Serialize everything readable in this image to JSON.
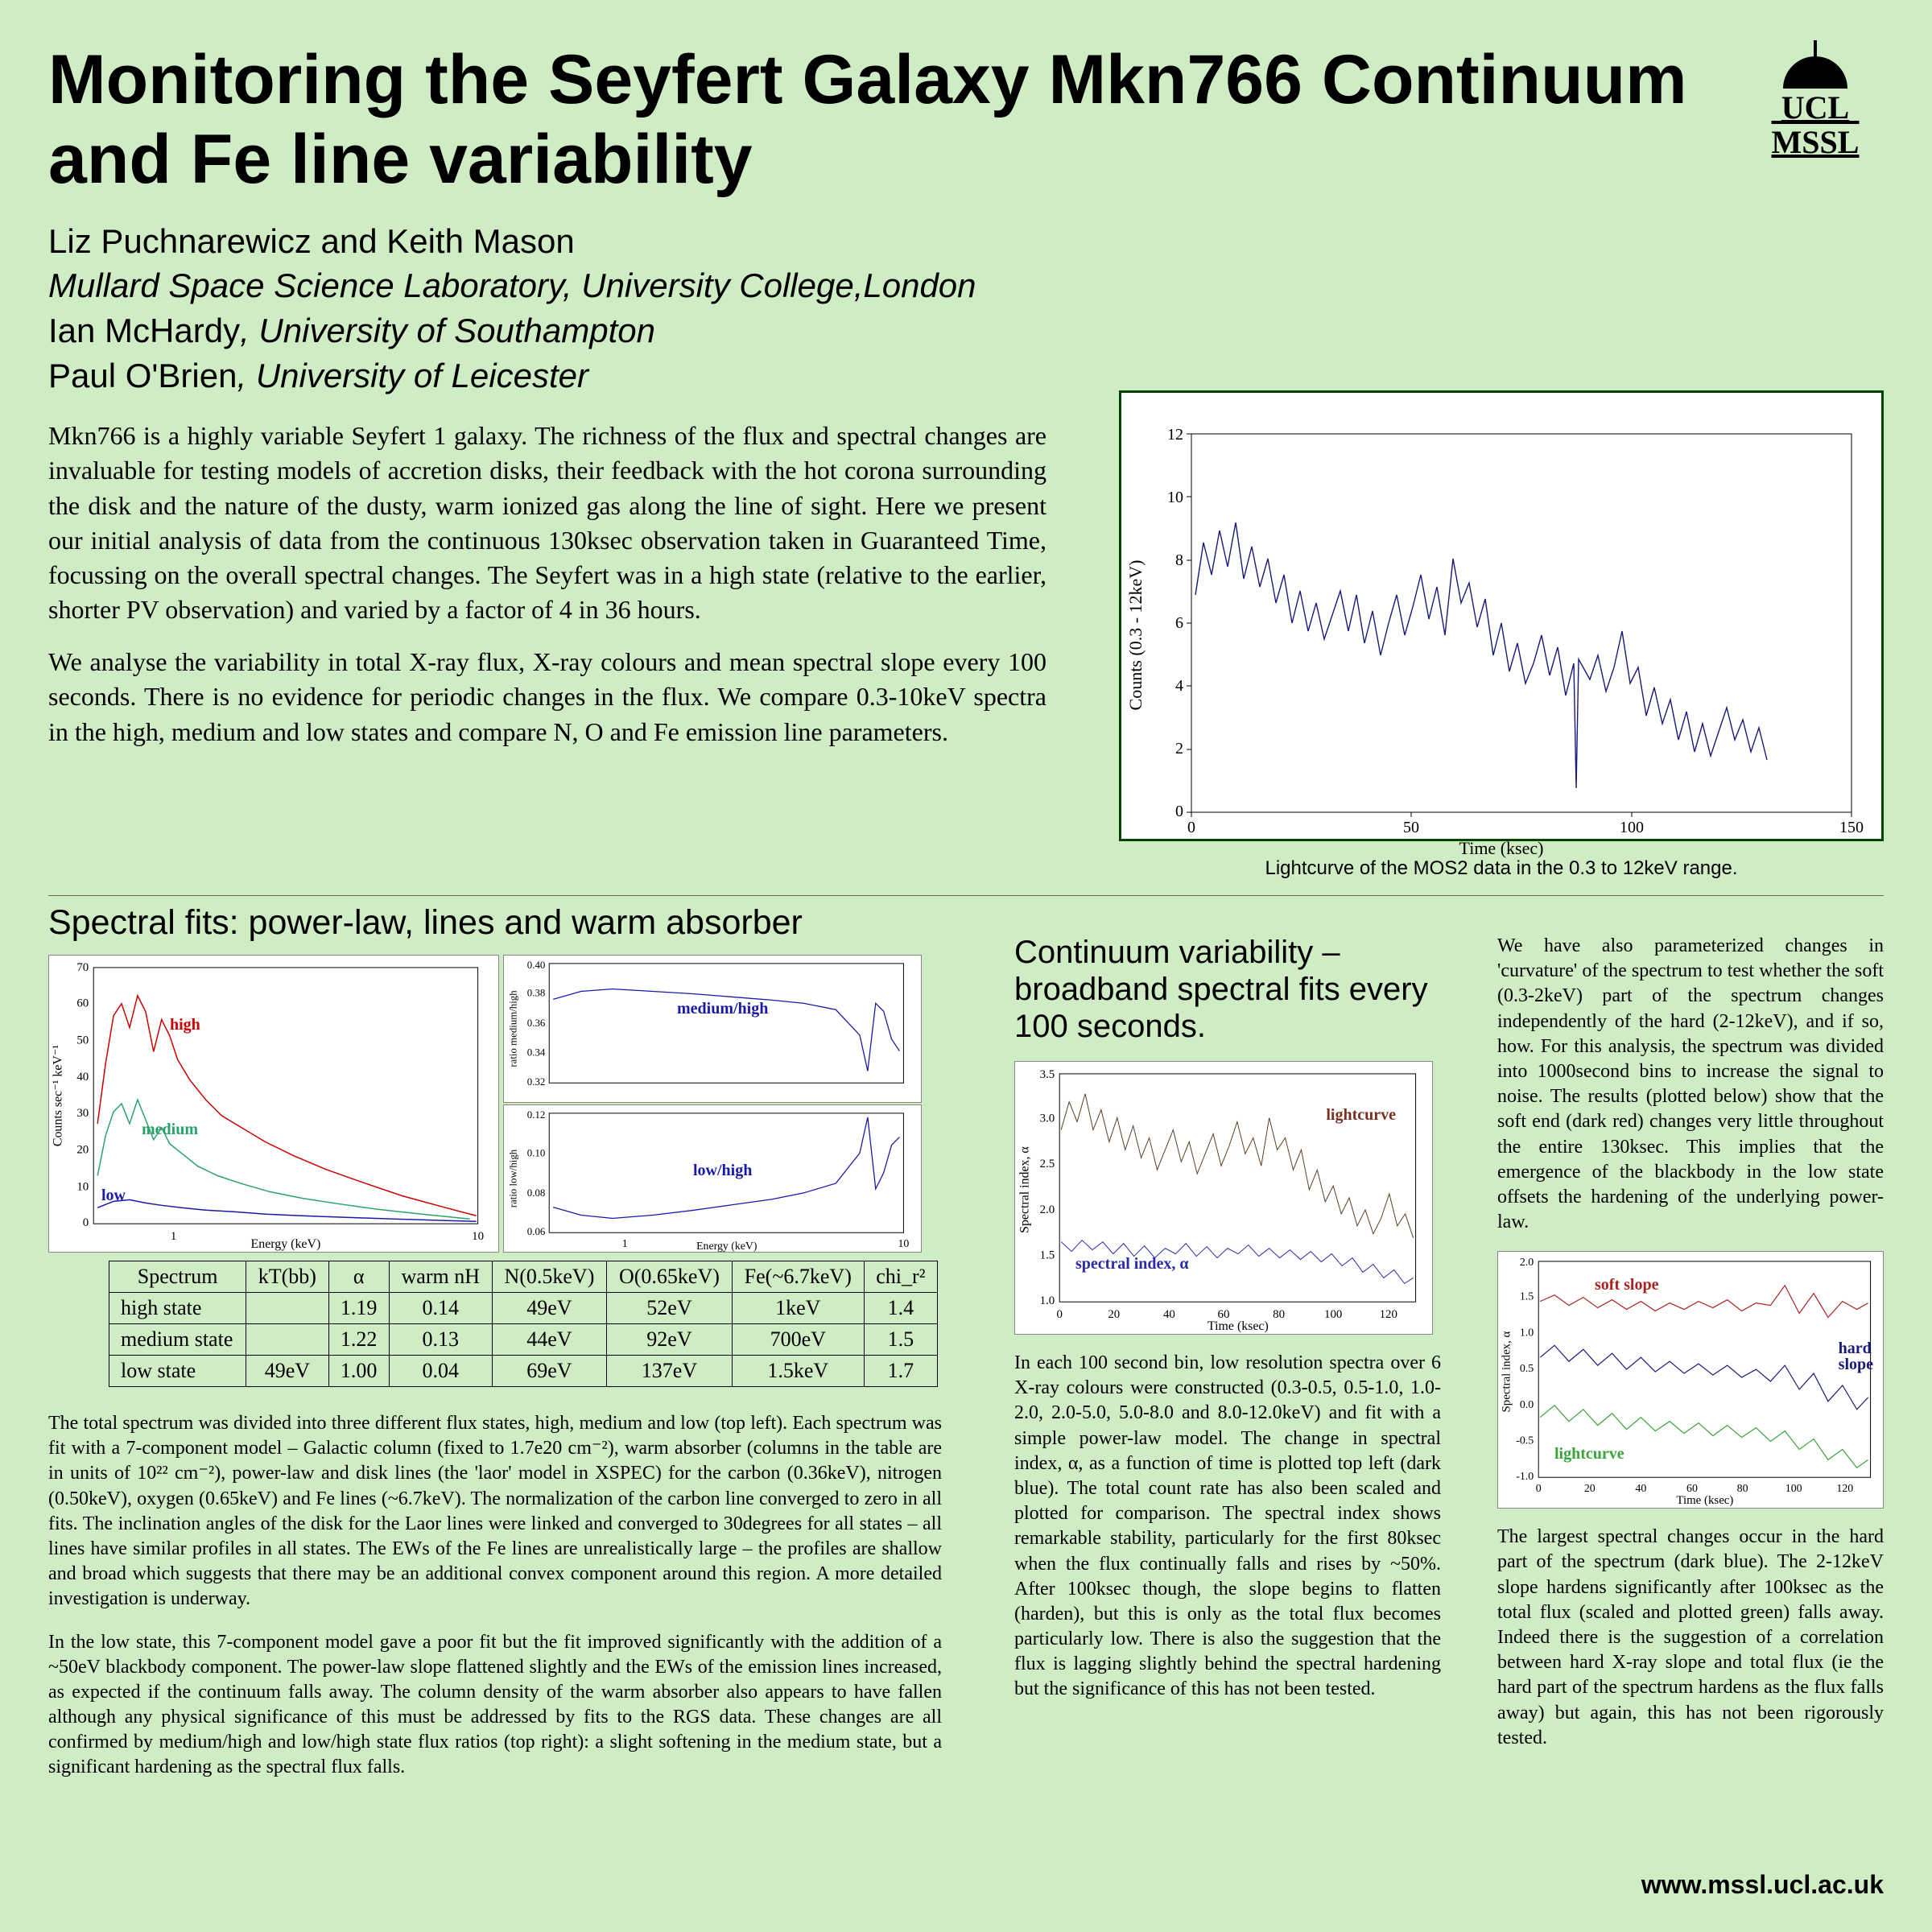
{
  "title": "Monitoring the Seyfert Galaxy Mkn766 Continuum and Fe line variability",
  "logo": {
    "line1": "UCL",
    "line2": "MSSL"
  },
  "authors": [
    {
      "names": "Liz Puchnarewicz and Keith Mason",
      "affil": "Mullard Space Science Laboratory, University College,London"
    },
    {
      "names": "Ian McHardy",
      "affil": "University of Southampton"
    },
    {
      "names": "Paul O'Brien",
      "affil": "University of Leicester"
    }
  ],
  "intro_p1": "Mkn766 is a highly variable Seyfert 1 galaxy. The richness of the flux and spectral changes are invaluable for testing models of accretion disks, their feedback with the hot corona surrounding the disk and the nature of the dusty, warm ionized gas along the line of sight. Here we present our initial analysis of data from the continuous 130ksec observation taken in Guaranteed Time, focussing on the overall spectral changes. The Seyfert was in a high state (relative to the earlier, shorter PV observation) and varied by a factor of 4 in 36 hours.",
  "intro_p2": "We analyse the variability in total X-ray flux, X-ray colours and mean spectral slope every 100 seconds. There is no evidence for periodic changes in the flux. We compare 0.3-10keV spectra in the high, medium and low states and compare N, O and Fe emission line parameters.",
  "lightcurve": {
    "caption": "Lightcurve of the MOS2 data in the 0.3 to 12keV range.",
    "xlabel": "Time (ksec)",
    "ylabel": "Counts (0.3 - 12keV)",
    "xlim": [
      0,
      150
    ],
    "ylim": [
      0,
      12
    ],
    "xticks": [
      0,
      50,
      100,
      150
    ],
    "yticks": [
      0,
      2,
      4,
      6,
      8,
      10,
      12
    ],
    "line_color": "#1a1a7a",
    "line_width": 1.2,
    "background_color": "#ffffff",
    "axis_color": "#000000"
  },
  "spectral": {
    "title": "Spectral fits: power-law, lines and warm absorber",
    "left_chart": {
      "xlabel": "Energy (keV)",
      "ylabel": "Counts sec⁻¹ keV⁻¹",
      "xscale": "log",
      "xlim": [
        0.3,
        10
      ],
      "ylim": [
        0,
        70
      ],
      "yticks": [
        0,
        10,
        20,
        30,
        40,
        50,
        60,
        70
      ],
      "series": [
        {
          "label": "high",
          "color": "#cc0000",
          "label_pos": [
            0.28,
            0.2
          ]
        },
        {
          "label": "medium",
          "color": "#2aa36b",
          "label_pos": [
            0.25,
            0.55
          ]
        },
        {
          "label": "low",
          "color": "#1a1aaa",
          "label_pos": [
            0.1,
            0.82
          ]
        }
      ]
    },
    "right_top": {
      "label": "medium/high",
      "label_color": "#1a1aaa",
      "ylabel": "ratio medium/high",
      "xlabel": "",
      "ylim": [
        0.32,
        0.4
      ],
      "yticks": [
        0.32,
        0.34,
        0.36,
        0.38,
        0.4
      ]
    },
    "right_bot": {
      "label": "low/high",
      "label_color": "#1a1aaa",
      "ylabel": "ratio low/high",
      "xlabel": "Energy (keV)",
      "ylim": [
        0.06,
        0.12
      ],
      "yticks": [
        0.06,
        0.08,
        0.1,
        0.12
      ]
    },
    "table": {
      "columns": [
        "Spectrum",
        "kT(bb)",
        "α",
        "warm nH",
        "N(0.5keV)",
        "O(0.65keV)",
        "Fe(~6.7keV)",
        "chi_r²"
      ],
      "rows": [
        [
          "high state",
          "",
          "1.19",
          "0.14",
          "49eV",
          "52eV",
          "1keV",
          "1.4"
        ],
        [
          "medium state",
          "",
          "1.22",
          "0.13",
          "44eV",
          "92eV",
          "700eV",
          "1.5"
        ],
        [
          "low state",
          "49eV",
          "1.00",
          "0.04",
          "69eV",
          "137eV",
          "1.5keV",
          "1.7"
        ]
      ]
    },
    "text_p1": "The total spectrum was divided into three different flux states, high, medium and low (top left). Each spectrum was fit with a 7-component model – Galactic column (fixed to 1.7e20 cm⁻²), warm absorber (columns in the table are in units of 10²² cm⁻²), power-law and disk lines (the 'laor' model in XSPEC) for the carbon (0.36keV), nitrogen (0.50keV), oxygen (0.65keV) and Fe lines (~6.7keV). The normalization of the carbon line converged to zero in all fits. The inclination angles of the disk for the Laor lines were linked and converged to 30degrees for all states – all lines have similar profiles in all states. The EWs of the Fe lines are unrealistically large – the profiles are shallow and broad which suggests that there may be an additional convex component around this region. A more detailed investigation is underway.",
    "text_p2": "In the low state, this 7-component model gave a poor fit but the fit improved significantly with the addition of a ~50eV blackbody component. The power-law slope flattened slightly and the EWs of the emission lines increased, as expected if the continuum falls away. The column density of the warm absorber also appears to have fallen although any physical significance of this must be addressed by fits to the RGS data. These changes are all confirmed by medium/high and low/high state flux ratios (top right): a slight softening in the medium state, but a significant hardening as the spectral flux falls."
  },
  "continuum": {
    "title": "Continuum variability – broadband spectral fits every 100 seconds.",
    "chart": {
      "xlabel": "Time (ksec)",
      "ylabel": "Spectral index, α",
      "xlim": [
        0,
        130
      ],
      "ylim": [
        1.0,
        3.5
      ],
      "xticks": [
        0,
        20,
        40,
        60,
        80,
        100,
        120
      ],
      "yticks": [
        1.0,
        1.5,
        2.0,
        2.5,
        3.0,
        3.5
      ],
      "series": [
        {
          "label": "lightcurve",
          "color": "#5a4020",
          "label_pos": [
            0.7,
            0.18
          ]
        },
        {
          "label": "spectral index, α",
          "color": "#2a2aaa",
          "label_pos": [
            0.15,
            0.78
          ]
        }
      ]
    },
    "text": "In each 100 second bin, low resolution spectra over 6 X-ray colours were constructed (0.3-0.5, 0.5-1.0, 1.0-2.0, 2.0-5.0, 5.0-8.0 and 8.0-12.0keV) and fit with a simple power-law model. The change in spectral index, α, as a function of time is plotted top left (dark blue). The total count rate has also been scaled and plotted for comparison. The spectral index shows remarkable stability, particularly for the first 80ksec when the flux continually falls and rises by ~50%. After 100ksec though, the slope begins to flatten (harden), but this is only as the total flux becomes particularly low. There is also the suggestion that the flux is lagging slightly behind the spectral hardening but the significance of this has not been tested."
  },
  "curvature": {
    "text_p1": "We have also parameterized changes in 'curvature' of the spectrum to test whether the soft (0.3-2keV) part of the spectrum changes independently of the hard (2-12keV), and if so, how. For this analysis, the spectrum was divided into 1000second bins to increase the signal to noise. The results (plotted below) show that the soft end (dark red) changes very little throughout the entire 130ksec. This implies that the emergence of the blackbody in the low state offsets the hardening of the underlying power-law.",
    "chart": {
      "xlabel": "Time (ksec)",
      "ylabel": "Spectral index, α",
      "xlim": [
        0,
        130
      ],
      "ylim": [
        -1.0,
        2.0
      ],
      "xticks": [
        0,
        20,
        40,
        60,
        80,
        100,
        120
      ],
      "yticks": [
        -1.0,
        -0.5,
        0.0,
        0.5,
        1.0,
        1.5,
        2.0
      ],
      "series": [
        {
          "label": "soft slope",
          "color": "#aa2222",
          "label_pos": [
            0.28,
            0.12
          ]
        },
        {
          "label": "hard slope",
          "color": "#1a1a7a",
          "label_pos": [
            0.82,
            0.4
          ]
        },
        {
          "label": "lightcurve",
          "color": "#3aa33a",
          "label_pos": [
            0.15,
            0.88
          ]
        }
      ]
    },
    "text_p2": "The largest spectral changes occur in the hard part of the spectrum (dark blue). The 2-12keV slope hardens significantly after 100ksec as the total flux (scaled and plotted green) falls away. Indeed there is the suggestion of a correlation between hard X-ray slope and total flux (ie the hard part of the spectrum hardens as the flux falls away) but again, this has not been rigorously tested."
  },
  "footer_url": "www.mssl.ucl.ac.uk"
}
